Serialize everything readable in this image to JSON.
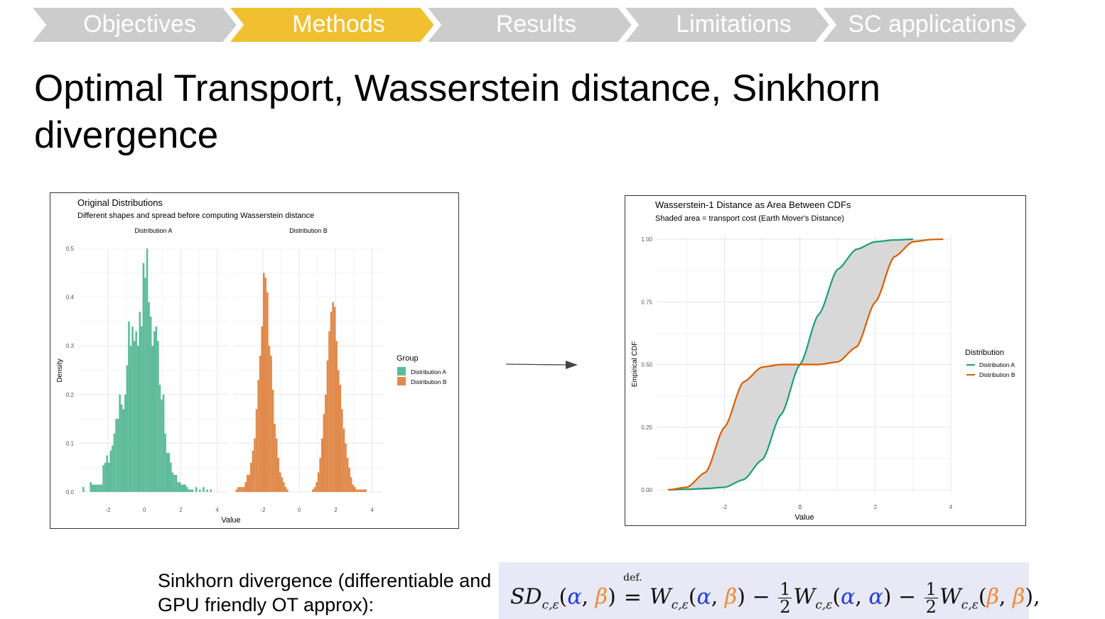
{
  "nav": {
    "items": [
      {
        "label": "Objectives",
        "active": false
      },
      {
        "label": "Methods",
        "active": true
      },
      {
        "label": "Results",
        "active": false
      },
      {
        "label": "Limitations",
        "active": false
      },
      {
        "label": "SC applications",
        "active": false
      }
    ],
    "colors": {
      "active": "#f0c030",
      "inactive": "#cccccc"
    }
  },
  "slide": {
    "title": "Optimal Transport, Wasserstein distance, Sinkhorn divergence"
  },
  "chart_data": [
    {
      "type": "bar",
      "title": "Original Distributions",
      "subtitle": "Different shapes and spread before computing Wasserstein distance",
      "xlabel": "Value",
      "ylabel": "Density",
      "ylim": [
        0,
        0.5
      ],
      "yticks": [
        "0.0",
        "0.1",
        "0.2",
        "0.3",
        "0.4",
        "0.5"
      ],
      "grid": true,
      "legend": {
        "title": "Group",
        "position": "right",
        "entries": [
          "Distribution A",
          "Distribution B"
        ]
      },
      "colors": {
        "Distribution A": "#5dbb9a",
        "Distribution B": "#e0894a"
      },
      "facets": [
        {
          "name": "Distribution A",
          "xticks": [
            "-2",
            "0",
            "2",
            "4"
          ],
          "xlim": [
            -3.6,
            4.6
          ],
          "bin_width": 0.1,
          "series": "Distribution A",
          "bins_x": [
            -3.4,
            -3.0,
            -2.9,
            -2.8,
            -2.7,
            -2.6,
            -2.5,
            -2.4,
            -2.3,
            -2.2,
            -2.1,
            -2.0,
            -1.9,
            -1.8,
            -1.7,
            -1.6,
            -1.5,
            -1.4,
            -1.3,
            -1.2,
            -1.1,
            -1.0,
            -0.9,
            -0.8,
            -0.7,
            -0.6,
            -0.5,
            -0.4,
            -0.3,
            -0.2,
            -0.1,
            0.0,
            0.1,
            0.2,
            0.3,
            0.4,
            0.5,
            0.6,
            0.7,
            0.8,
            0.9,
            1.0,
            1.1,
            1.2,
            1.3,
            1.4,
            1.5,
            1.6,
            1.7,
            1.8,
            1.9,
            2.0,
            2.1,
            2.2,
            2.3,
            2.4,
            2.5,
            2.6,
            2.8,
            3.0,
            3.2,
            3.4,
            3.6
          ],
          "bins_y": [
            0.01,
            0.02,
            0.015,
            0.015,
            0.015,
            0.015,
            0.015,
            0.015,
            0.055,
            0.06,
            0.075,
            0.06,
            0.085,
            0.095,
            0.12,
            0.15,
            0.15,
            0.2,
            0.18,
            0.17,
            0.2,
            0.26,
            0.35,
            0.3,
            0.34,
            0.31,
            0.33,
            0.3,
            0.37,
            0.34,
            0.47,
            0.44,
            0.5,
            0.39,
            0.36,
            0.3,
            0.33,
            0.34,
            0.31,
            0.22,
            0.19,
            0.2,
            0.12,
            0.08,
            0.08,
            0.06,
            0.04,
            0.035,
            0.035,
            0.02,
            0.02,
            0.015,
            0.015,
            0.015,
            0.01,
            0.005,
            0.005,
            0.005,
            0.01,
            0.005,
            0.01,
            0.005,
            0.005
          ]
        },
        {
          "name": "Distribution B",
          "xticks": [
            "-2",
            "0",
            "2",
            "4"
          ],
          "xlim": [
            -3.6,
            4.6
          ],
          "bin_width": 0.1,
          "series": "Distribution B",
          "bins_x": [
            -3.5,
            -3.4,
            -3.3,
            -3.2,
            -3.1,
            -3.0,
            -2.9,
            -2.8,
            -2.7,
            -2.6,
            -2.5,
            -2.4,
            -2.3,
            -2.2,
            -2.1,
            -2.0,
            -1.9,
            -1.8,
            -1.7,
            -1.6,
            -1.5,
            -1.4,
            -1.3,
            -1.2,
            -1.1,
            -1.0,
            -0.9,
            -0.8,
            -0.7,
            0.7,
            0.8,
            0.9,
            1.0,
            1.1,
            1.2,
            1.3,
            1.4,
            1.5,
            1.6,
            1.7,
            1.8,
            1.9,
            2.0,
            2.1,
            2.2,
            2.3,
            2.4,
            2.5,
            2.6,
            2.7,
            2.8,
            2.9,
            3.0,
            3.1,
            3.2,
            3.3,
            3.4,
            3.5,
            3.6
          ],
          "bins_y": [
            0.005,
            0.01,
            0.01,
            0.01,
            0.01,
            0.02,
            0.035,
            0.035,
            0.06,
            0.085,
            0.11,
            0.17,
            0.23,
            0.28,
            0.34,
            0.45,
            0.44,
            0.41,
            0.3,
            0.28,
            0.21,
            0.14,
            0.11,
            0.07,
            0.04,
            0.03,
            0.02,
            0.01,
            0.005,
            0.005,
            0.01,
            0.02,
            0.04,
            0.07,
            0.11,
            0.16,
            0.2,
            0.27,
            0.33,
            0.37,
            0.39,
            0.38,
            0.31,
            0.25,
            0.22,
            0.17,
            0.13,
            0.1,
            0.07,
            0.05,
            0.03,
            0.015,
            0.01,
            0.005,
            0.005,
            0.005,
            0.005,
            0.005,
            0.005
          ]
        }
      ]
    },
    {
      "type": "line",
      "title": "Wasserstein-1 Distance as Area Between CDFs",
      "subtitle": "Shaded area = transport cost (Earth Mover's Distance)",
      "xlabel": "Value",
      "ylabel": "Empirical CDF",
      "xlim": [
        -3.8,
        4.0
      ],
      "ylim": [
        0,
        1
      ],
      "xticks": [
        "-2",
        "0",
        "2",
        "4"
      ],
      "yticks": [
        "0.00",
        "0.25",
        "0.50",
        "0.75",
        "1.00"
      ],
      "grid": true,
      "shaded_area_color": "#d8d8d8",
      "legend": {
        "title": "Distribution",
        "position": "right",
        "entries": [
          "Distribution A",
          "Distribution B"
        ]
      },
      "colors": {
        "Distribution A": "#1b9e77",
        "Distribution B": "#d95f02"
      },
      "series": [
        {
          "name": "Distribution A",
          "x": [
            -3.5,
            -3.0,
            -2.5,
            -2.0,
            -1.5,
            -1.0,
            -0.5,
            0.0,
            0.5,
            1.0,
            1.5,
            2.0,
            2.5,
            3.0
          ],
          "y": [
            0.0,
            0.002,
            0.005,
            0.01,
            0.04,
            0.12,
            0.3,
            0.5,
            0.7,
            0.88,
            0.96,
            0.99,
            0.997,
            1.0
          ]
        },
        {
          "name": "Distribution B",
          "x": [
            -3.5,
            -3.0,
            -2.5,
            -2.0,
            -1.5,
            -1.0,
            -0.5,
            0.0,
            0.5,
            1.0,
            1.5,
            2.0,
            2.5,
            3.0,
            3.5,
            3.8
          ],
          "y": [
            0.0,
            0.01,
            0.07,
            0.25,
            0.43,
            0.49,
            0.5,
            0.5,
            0.5,
            0.51,
            0.57,
            0.75,
            0.93,
            0.99,
            0.999,
            1.0
          ]
        }
      ]
    }
  ],
  "sinkhorn": {
    "label": "Sinkhorn divergence (differentiable and GPU friendly OT approx):",
    "formula": {
      "sd": "SD",
      "w": "W",
      "sub": "c,ε",
      "alpha": "α",
      "beta": "β",
      "def": "def.",
      "eq": "=",
      "minus": "−",
      "half_num": "1",
      "half_den": "2",
      "comma": ",",
      "lp": "(",
      "rp": ")",
      "end": ","
    }
  }
}
